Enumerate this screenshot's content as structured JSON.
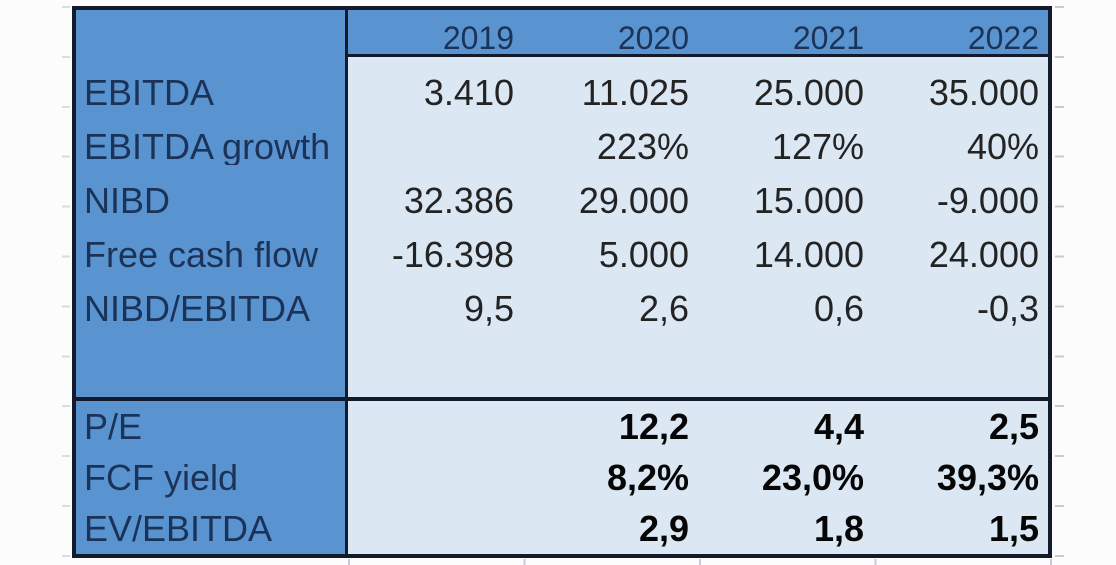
{
  "table": {
    "years": [
      "2019",
      "2020",
      "2021",
      "2022"
    ],
    "metrics": {
      "rows": [
        {
          "label": "EBITDA",
          "values": [
            "3.410",
            "11.025",
            "25.000",
            "35.000"
          ]
        },
        {
          "label": "EBITDA growth",
          "values": [
            "",
            "223%",
            "127%",
            "40%"
          ]
        },
        {
          "label": "NIBD",
          "values": [
            "32.386",
            "29.000",
            "15.000",
            "-9.000"
          ]
        },
        {
          "label": "Free cash flow",
          "values": [
            "-16.398",
            "5.000",
            "14.000",
            "24.000"
          ]
        },
        {
          "label": "NIBD/EBITDA",
          "values": [
            "9,5",
            "2,6",
            "0,6",
            "-0,3"
          ]
        }
      ]
    },
    "valuation": {
      "rows": [
        {
          "label": "P/E",
          "values": [
            "",
            "12,2",
            "4,4",
            "2,5"
          ]
        },
        {
          "label": "FCF yield",
          "values": [
            "",
            "8,2%",
            "23,0%",
            "39,3%"
          ]
        },
        {
          "label": "EV/EBITDA",
          "values": [
            "",
            "2,9",
            "1,8",
            "1,5"
          ]
        }
      ]
    },
    "colors": {
      "header_fill": "#5a94d0",
      "body_fill": "#dbe7f3",
      "border": "#121a2b",
      "label_text": "#1b3358",
      "value_text": "#232323",
      "bold_value_text": "#060606"
    }
  }
}
